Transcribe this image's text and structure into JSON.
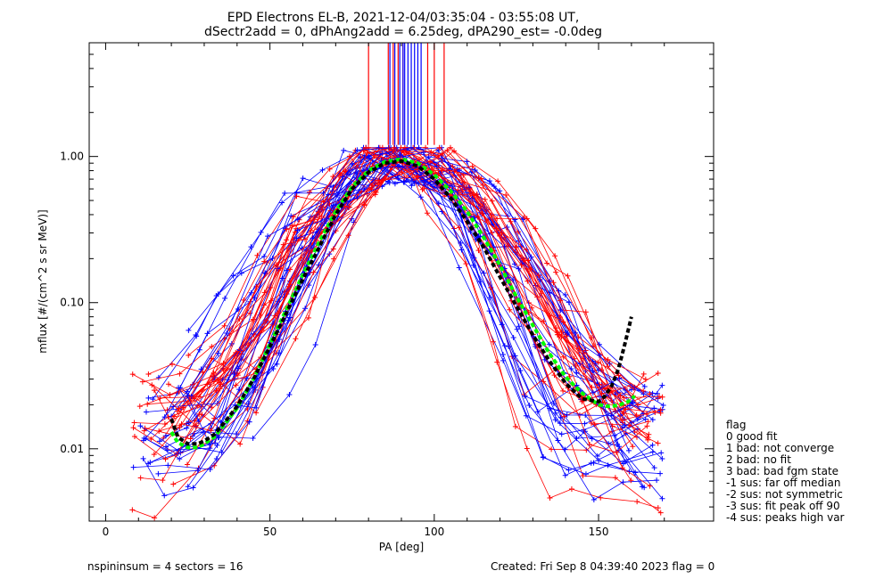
{
  "chart_data": {
    "type": "line",
    "title": "EPD Electrons EL-B, 2021-12-04/03:35:04 - 03:55:08 UT,",
    "subtitle": "dSectr2add = 0, dPhAng2add = 6.25deg, dPA290_est=  -0.0deg",
    "xlabel": "PA [deg]",
    "ylabel": "mflux [#/(cm^2 s sr MeV)]",
    "xlim": [
      -5,
      185
    ],
    "ylim": [
      0.0032,
      6.0
    ],
    "yscale": "log",
    "x_ticks": [
      0,
      50,
      100,
      150
    ],
    "x_tick_labels": [
      "0",
      "50",
      "100",
      "150"
    ],
    "y_ticks": [
      0.01,
      0.1,
      1.0
    ],
    "y_tick_labels": [
      "0.01",
      "0.10",
      "1.00"
    ],
    "grid": false,
    "colors": {
      "red": "#ff0000",
      "blue": "#0000ff",
      "green": "#00ff00",
      "black": "#000000"
    },
    "legend": {
      "title": "flag",
      "entries": [
        " 0 good fit",
        " 1 bad: not converge",
        " 2 bad: no fit",
        " 3 bad: bad fgm state",
        "-1 sus: far off median",
        "-2 sus: not symmetric",
        "-3 sus: fit peak off 90",
        "-4 sus: peaks high var"
      ]
    },
    "footer": {
      "left": "nspininsum =  4  sectors = 16",
      "right": "Created: Fri Sep  8 04:39:40 2023   flag = 0"
    },
    "vertical_lines": {
      "red": [
        80,
        86,
        87.5,
        89,
        90.5,
        98,
        100,
        103
      ],
      "blue": [
        86.5,
        88,
        89.5,
        90.5,
        91,
        92,
        93,
        94,
        95,
        96
      ]
    },
    "series": [
      {
        "color": "#00ff00",
        "style": "dashed",
        "x": [
          20,
          22,
          25,
          28,
          30,
          33,
          36,
          40,
          45,
          50,
          55,
          60,
          65,
          70,
          75,
          80,
          85,
          90,
          95,
          100,
          105,
          110,
          115,
          120,
          125,
          130,
          135,
          140,
          145,
          150,
          153,
          156,
          159,
          161
        ],
        "y": [
          0.013,
          0.011,
          0.0102,
          0.0102,
          0.0108,
          0.012,
          0.0145,
          0.019,
          0.03,
          0.052,
          0.09,
          0.155,
          0.26,
          0.42,
          0.62,
          0.8,
          0.92,
          0.96,
          0.9,
          0.75,
          0.58,
          0.42,
          0.28,
          0.18,
          0.11,
          0.07,
          0.045,
          0.031,
          0.024,
          0.02,
          0.0195,
          0.0198,
          0.021,
          0.023
        ]
      },
      {
        "color": "#000000",
        "style": "dashed",
        "x": [
          20,
          22,
          25,
          28,
          30,
          33,
          36,
          40,
          45,
          50,
          55,
          60,
          65,
          70,
          75,
          80,
          85,
          90,
          95,
          100,
          105,
          110,
          115,
          120,
          125,
          130,
          135,
          140,
          145,
          150,
          152,
          154,
          156,
          158,
          160
        ],
        "y": [
          0.016,
          0.012,
          0.0108,
          0.0108,
          0.0113,
          0.0125,
          0.015,
          0.0195,
          0.03,
          0.05,
          0.085,
          0.145,
          0.24,
          0.4,
          0.6,
          0.78,
          0.9,
          0.93,
          0.86,
          0.7,
          0.52,
          0.36,
          0.24,
          0.15,
          0.095,
          0.06,
          0.04,
          0.028,
          0.022,
          0.021,
          0.023,
          0.027,
          0.035,
          0.052,
          0.08
        ]
      }
    ]
  }
}
